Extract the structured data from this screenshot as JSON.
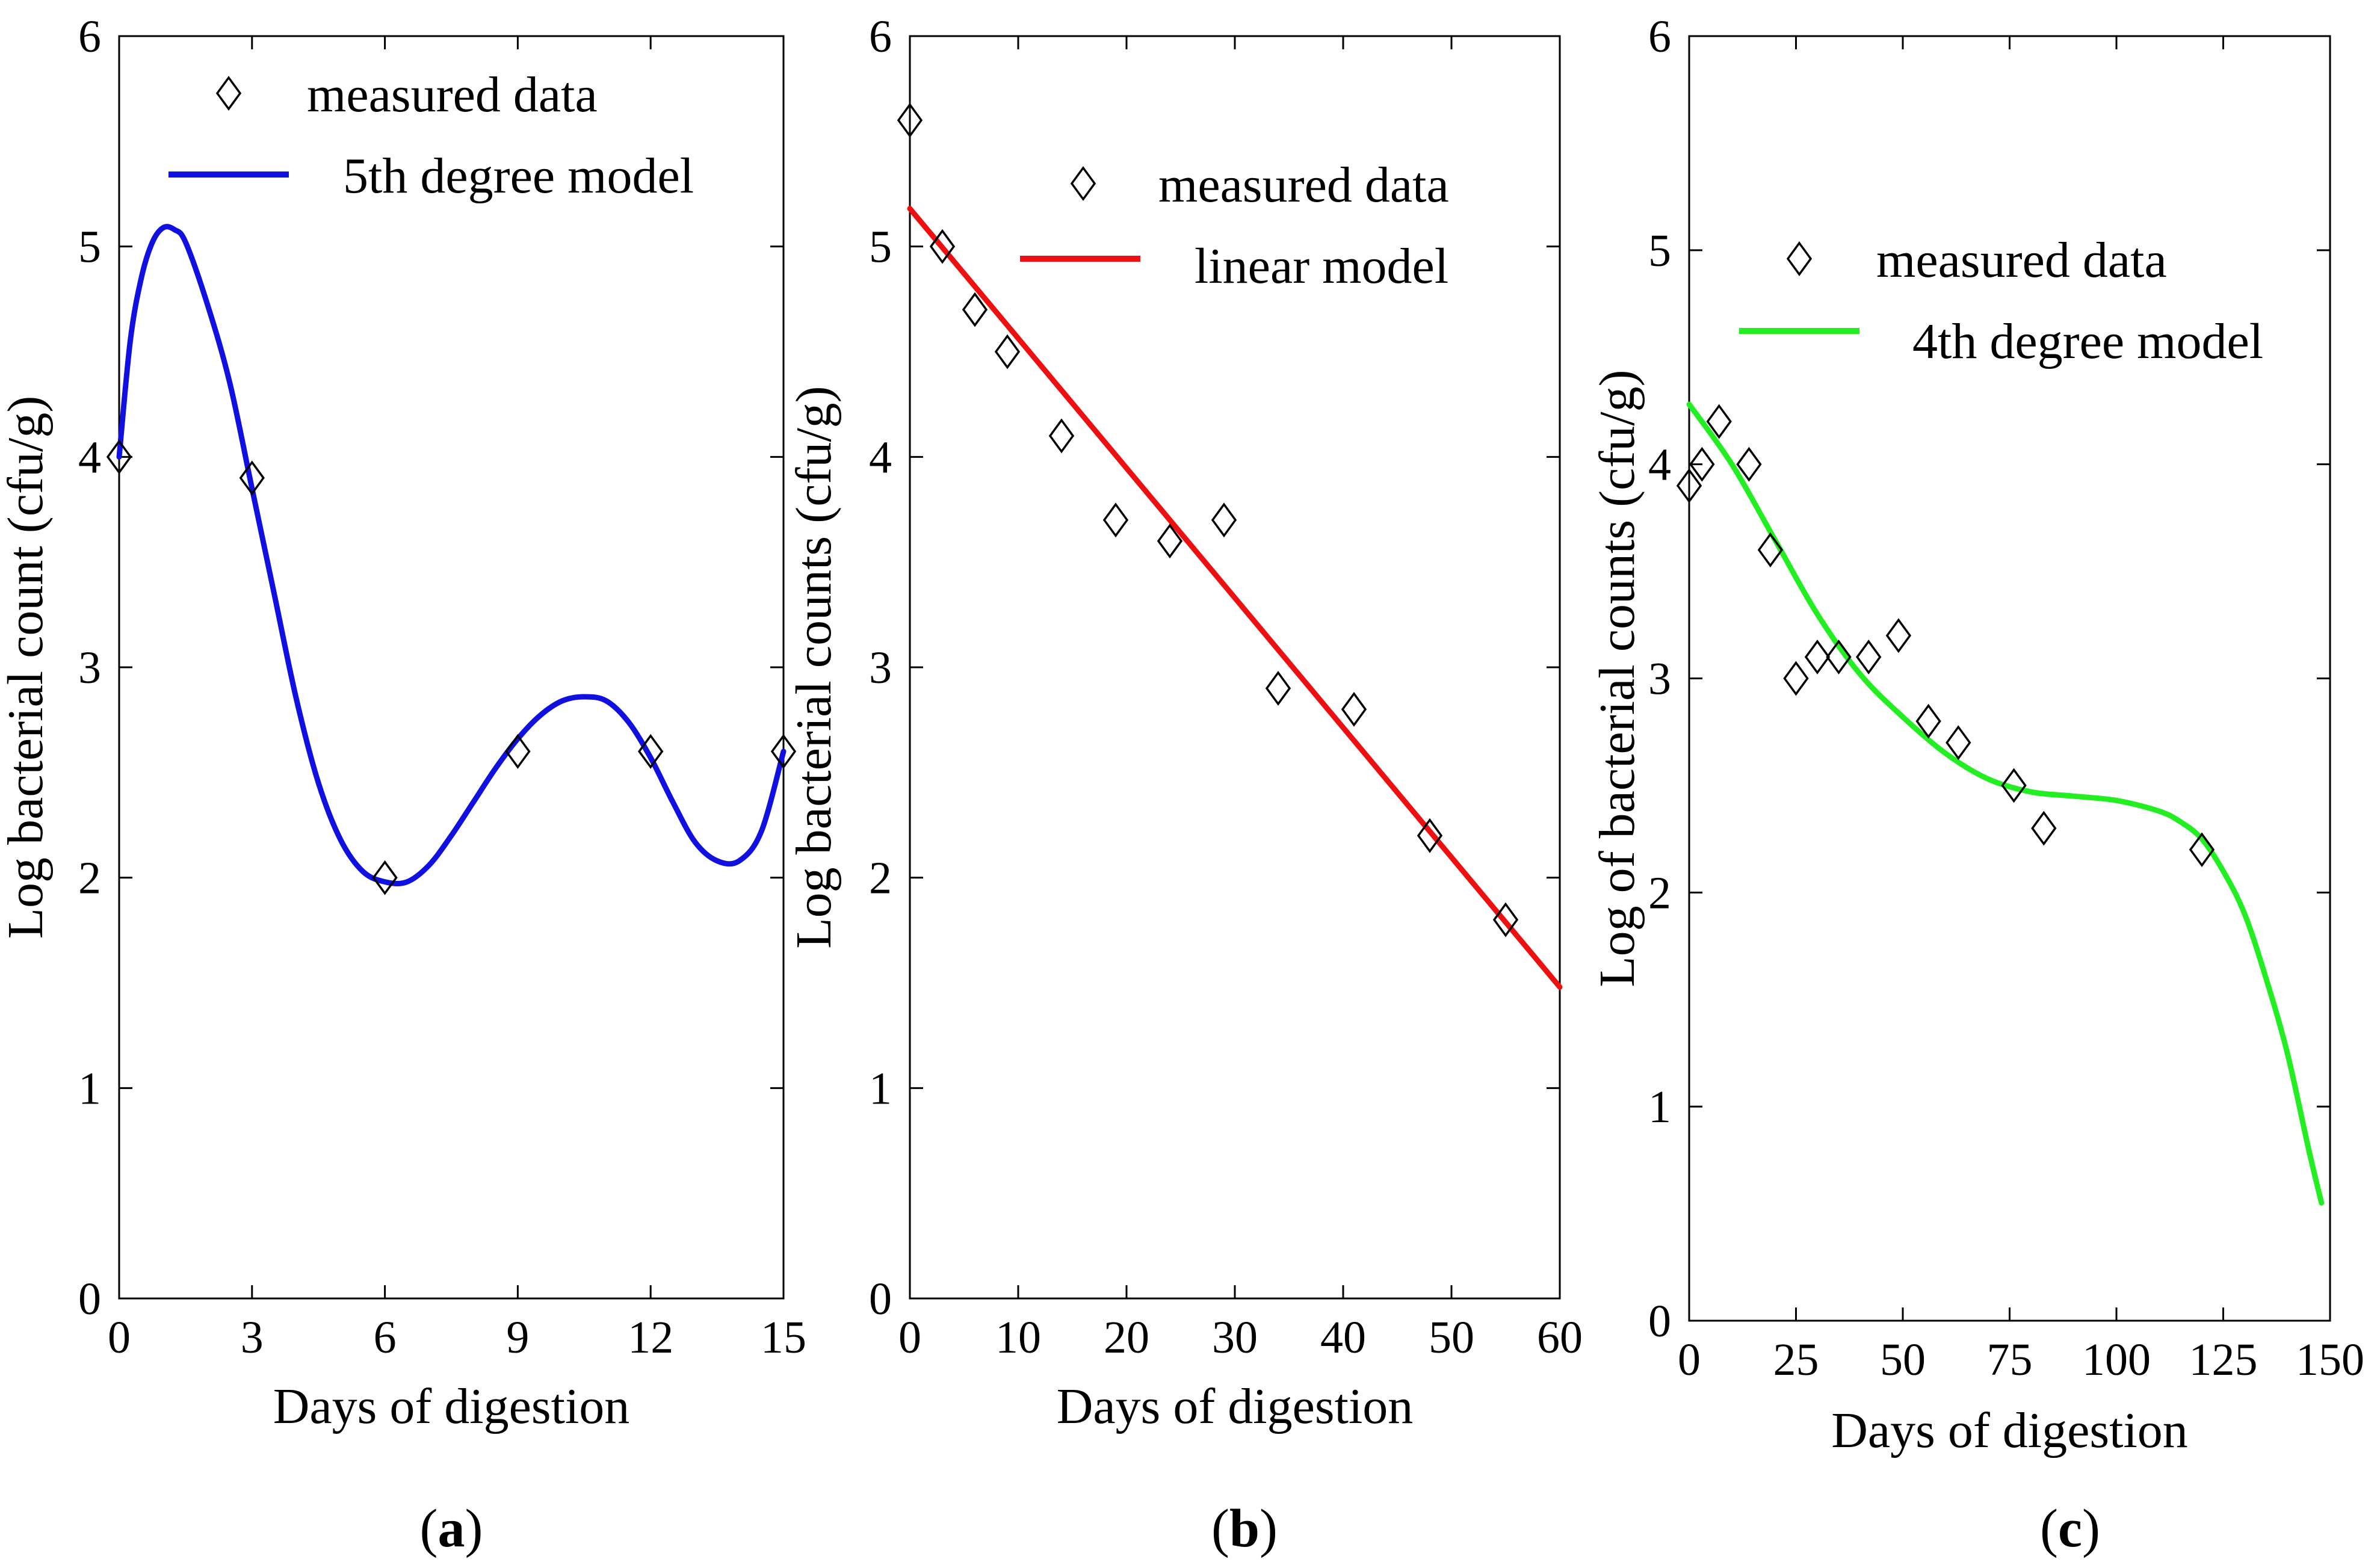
{
  "chart_data": [
    {
      "type": "line",
      "panel": "a",
      "caption_open": "(",
      "caption_letter": "a",
      "caption_close": ")",
      "xlabel": "Days of digestion",
      "ylabel": "Log bacterial count (cfu/g)",
      "xlim": [
        0,
        15
      ],
      "ylim": [
        0,
        6
      ],
      "xticks": [
        0,
        3,
        6,
        9,
        12,
        15
      ],
      "yticks": [
        0,
        1,
        2,
        3,
        4,
        5,
        6
      ],
      "grid": false,
      "legend_placement": "top",
      "series": [
        {
          "name": "measured data",
          "kind": "scatter",
          "marker": "diamond",
          "color": "#000000",
          "x": [
            0,
            3,
            6,
            9,
            12,
            15
          ],
          "y": [
            4.0,
            3.9,
            2.0,
            2.6,
            2.6,
            2.6
          ]
        },
        {
          "name": "5th degree model",
          "kind": "line",
          "color": "#1010e0",
          "x": [
            0,
            0.25,
            0.5,
            0.75,
            1.0,
            1.25,
            1.5,
            2.0,
            2.5,
            3.0,
            3.5,
            4.0,
            4.5,
            5.0,
            5.5,
            6.0,
            6.5,
            7.0,
            7.5,
            8.0,
            8.5,
            9.0,
            9.5,
            10.0,
            10.5,
            11.0,
            11.5,
            12.0,
            12.5,
            13.0,
            13.5,
            14.0,
            14.5,
            15.0
          ],
          "y": [
            4.0,
            4.55,
            4.85,
            5.02,
            5.09,
            5.08,
            5.02,
            4.72,
            4.35,
            3.85,
            3.35,
            2.85,
            2.45,
            2.18,
            2.03,
            1.98,
            1.98,
            2.06,
            2.2,
            2.36,
            2.52,
            2.66,
            2.77,
            2.84,
            2.86,
            2.84,
            2.74,
            2.57,
            2.36,
            2.17,
            2.08,
            2.08,
            2.22,
            2.6
          ]
        }
      ]
    },
    {
      "type": "line",
      "panel": "b",
      "caption_open": "(",
      "caption_letter": "b",
      "caption_close": ")",
      "xlabel": "Days of digestion",
      "ylabel": "Log bacterial counts (cfu/g)",
      "xlim": [
        0,
        60
      ],
      "ylim": [
        0,
        6
      ],
      "xticks": [
        0,
        10,
        20,
        30,
        40,
        50,
        60
      ],
      "yticks": [
        0,
        1,
        2,
        3,
        4,
        5,
        6
      ],
      "grid": false,
      "legend_placement": "top-right",
      "series": [
        {
          "name": "measured data",
          "kind": "scatter",
          "marker": "diamond",
          "color": "#000000",
          "x": [
            0,
            3,
            6,
            9,
            14,
            19,
            24,
            29,
            34,
            41,
            48,
            55
          ],
          "y": [
            5.6,
            5.0,
            4.7,
            4.5,
            4.1,
            3.7,
            3.6,
            3.7,
            2.9,
            2.8,
            2.2,
            1.8
          ]
        },
        {
          "name": "linear model",
          "kind": "line",
          "color": "#ee1010",
          "x": [
            0,
            60
          ],
          "y": [
            5.18,
            1.48
          ]
        }
      ]
    },
    {
      "type": "line",
      "panel": "c",
      "caption_open": "(",
      "caption_letter": "c",
      "caption_close": ")",
      "xlabel": "Days of digestion",
      "ylabel": "Log of bacterial counts (cfu/g)",
      "xlim": [
        0,
        150
      ],
      "ylim": [
        0,
        6
      ],
      "xticks": [
        0,
        25,
        50,
        75,
        100,
        125,
        150
      ],
      "yticks": [
        0,
        1,
        2,
        3,
        4,
        5,
        6
      ],
      "grid": false,
      "legend_placement": "top-right",
      "series": [
        {
          "name": "measured data",
          "kind": "scatter",
          "marker": "diamond",
          "color": "#000000",
          "x": [
            0,
            3,
            7,
            14,
            19,
            25,
            30,
            35,
            42,
            49,
            56,
            63,
            76,
            83,
            120
          ],
          "y": [
            3.9,
            4.0,
            4.2,
            4.0,
            3.6,
            3.0,
            3.1,
            3.1,
            3.1,
            3.2,
            2.8,
            2.7,
            2.5,
            2.3,
            2.2
          ]
        },
        {
          "name": "4th degree model",
          "kind": "line",
          "color": "#22ee22",
          "x": [
            0,
            10,
            20,
            30,
            40,
            50,
            60,
            70,
            80,
            90,
            100,
            110,
            115,
            120,
            125,
            130,
            135,
            140,
            145,
            148
          ],
          "y": [
            4.28,
            4.0,
            3.65,
            3.3,
            3.02,
            2.82,
            2.65,
            2.53,
            2.47,
            2.45,
            2.43,
            2.38,
            2.33,
            2.25,
            2.1,
            1.9,
            1.6,
            1.25,
            0.8,
            0.55
          ]
        }
      ]
    }
  ]
}
